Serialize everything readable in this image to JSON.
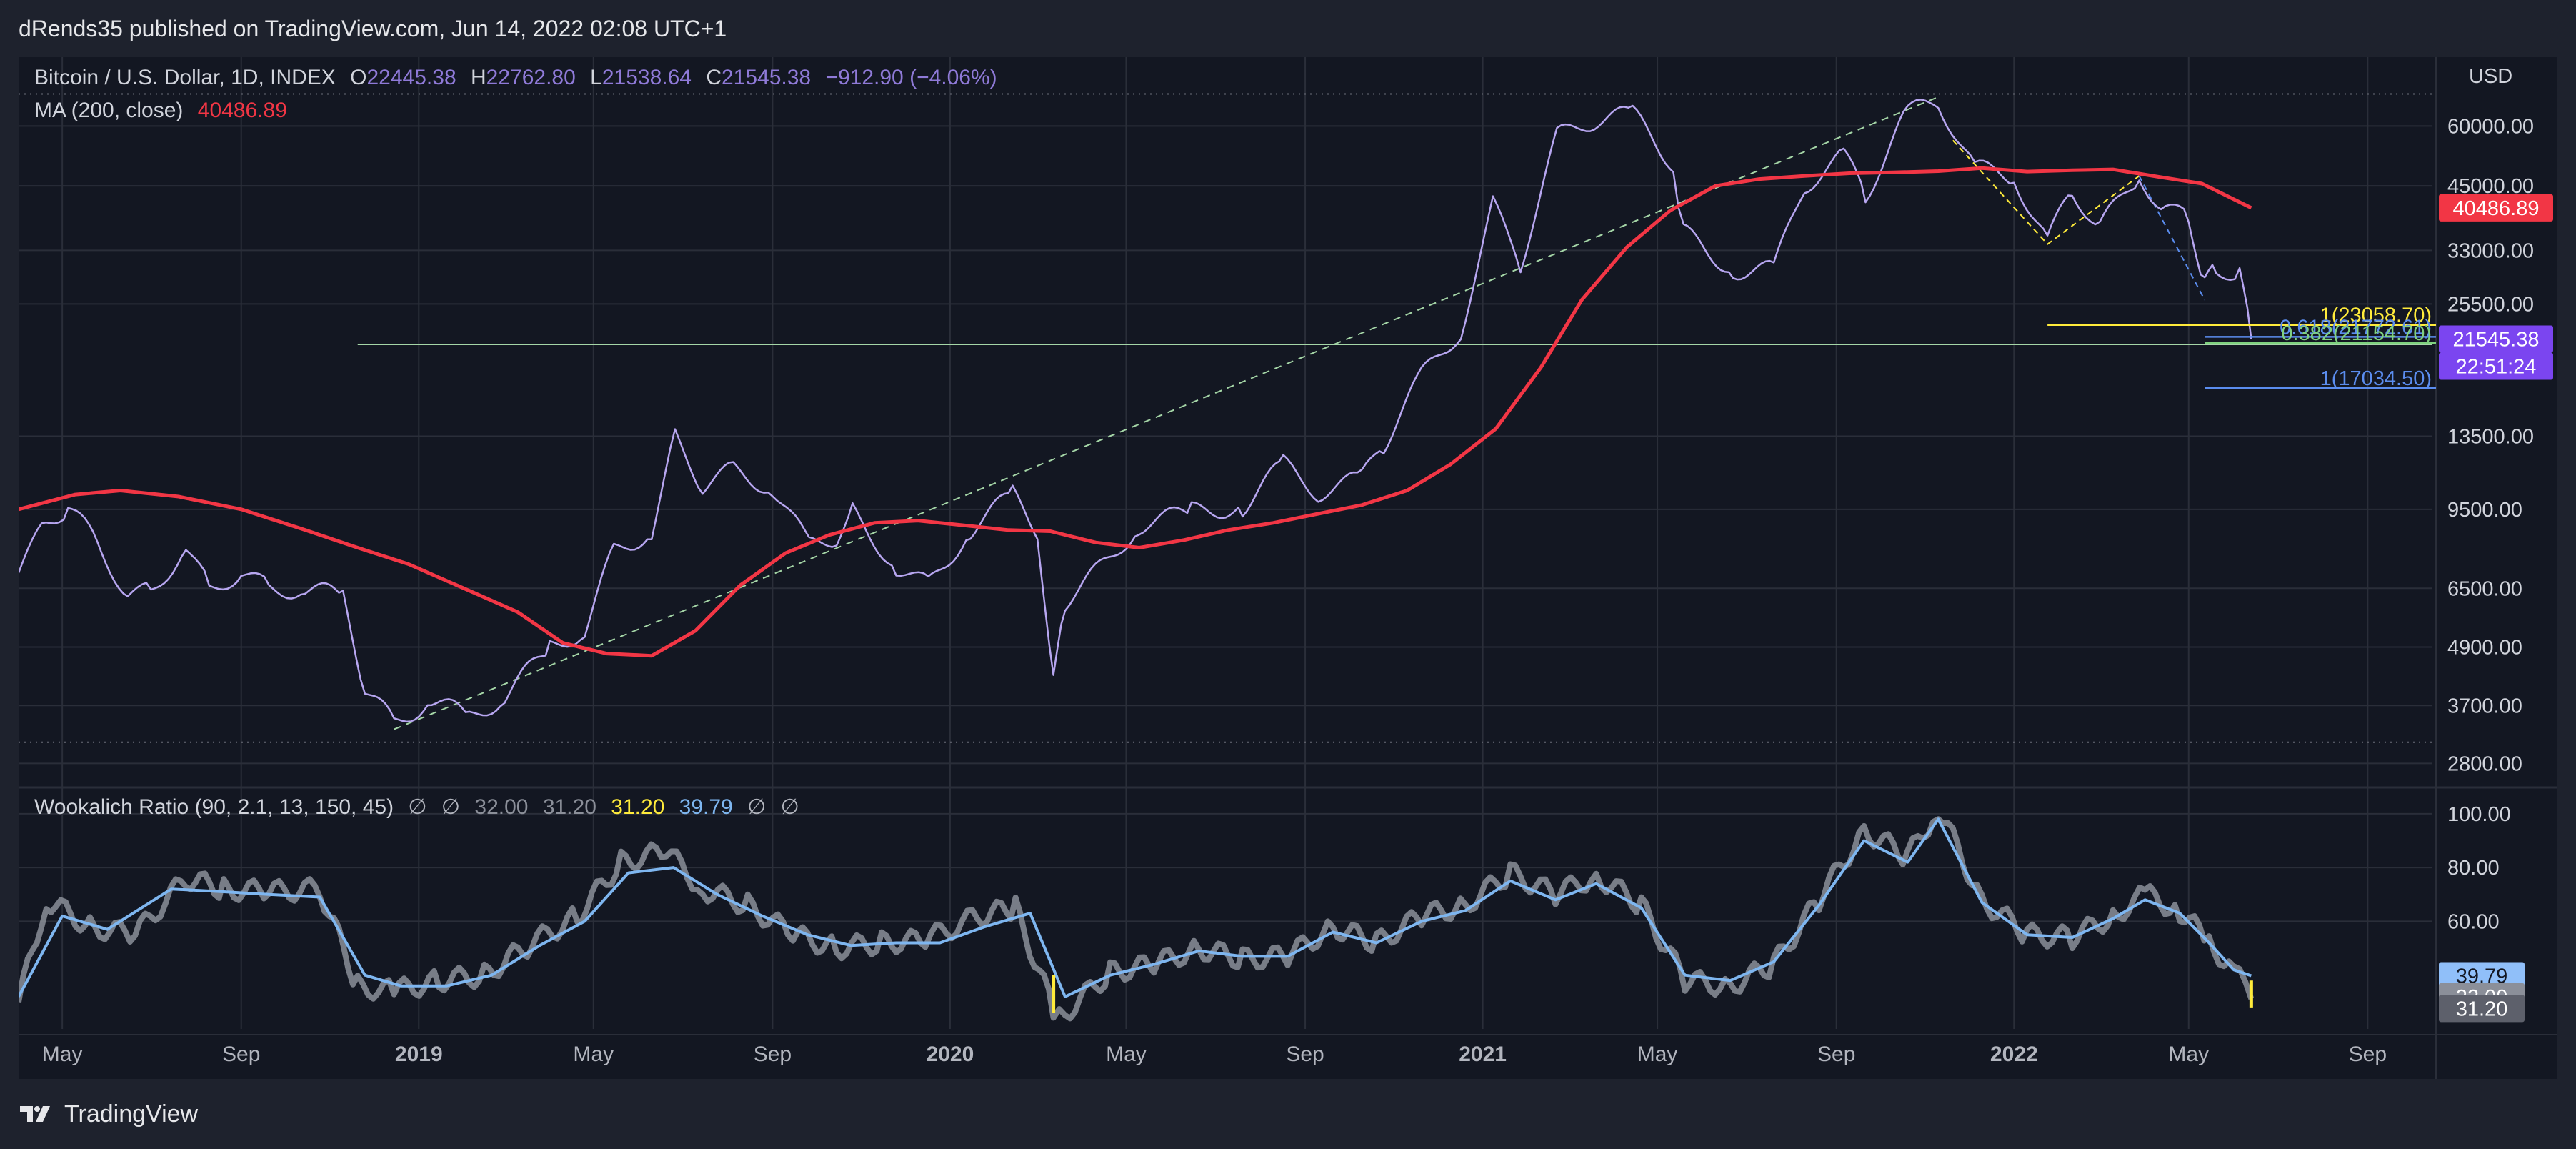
{
  "header": {
    "published": "dRends35 published on TradingView.com, Jun 14, 2022 02:08 UTC+1"
  },
  "footer": {
    "brand": "TradingView"
  },
  "legend_main": {
    "symbol": "Bitcoin / U.S. Dollar, 1D, INDEX",
    "o_label": "O",
    "o_value": "22445.38",
    "h_label": "H",
    "h_value": "22762.80",
    "l_label": "L",
    "l_value": "21538.64",
    "c_label": "C",
    "c_value": "21545.38",
    "change": "−912.90 (−4.06%)",
    "ma_label": "MA (200, close)",
    "ma_value": "40486.89"
  },
  "legend_osc": {
    "label": "Wookalich Ratio (90, 2.1, 13, 150, 45)",
    "v1": "∅",
    "v2": "∅",
    "v3": "32.00",
    "v4": "31.20",
    "v5": "31.20",
    "v6": "39.79",
    "v7": "∅",
    "v8": "∅"
  },
  "colors": {
    "price": "#b7a6f0",
    "ma": "#f23645",
    "osc_raw": "#8b8f99",
    "osc_smooth": "#7eb6f0",
    "fib_yellow": "#ffeb3b",
    "fib_blue": "#5b8def",
    "fib_green": "#7fd17f",
    "last_badge": "#7b45f0"
  },
  "chart_data": [
    {
      "type": "line",
      "title": "Bitcoin / U.S. Dollar, 1D, INDEX",
      "scale": "log",
      "ylabel": "USD",
      "ylim": [
        2600,
        78000
      ],
      "x_ticks": [
        "May",
        "Sep",
        "2019",
        "May",
        "Sep",
        "2020",
        "May",
        "Sep",
        "2021",
        "May",
        "Sep",
        "2022",
        "May",
        "Sep"
      ],
      "y_ticks": [
        "60000.00",
        "45000.00",
        "33000.00",
        "25500.00",
        "13500.00",
        "9500.00",
        "6500.00",
        "4900.00",
        "3700.00",
        "2800.00"
      ],
      "series": [
        {
          "name": "Bitcoin / U.S. Dollar",
          "x": [
            "2018-04-01",
            "2018-04-20",
            "2018-05-05",
            "2018-05-25",
            "2018-06-15",
            "2018-07-01",
            "2018-07-25",
            "2018-08-10",
            "2018-09-01",
            "2018-09-20",
            "2018-10-15",
            "2018-11-10",
            "2018-11-25",
            "2018-12-15",
            "2019-01-10",
            "2019-02-05",
            "2019-03-01",
            "2019-04-01",
            "2019-04-25",
            "2019-05-15",
            "2019-06-10",
            "2019-06-26",
            "2019-07-15",
            "2019-08-05",
            "2019-09-01",
            "2019-09-26",
            "2019-10-15",
            "2019-10-26",
            "2019-11-25",
            "2019-12-17",
            "2020-01-15",
            "2020-02-13",
            "2020-03-01",
            "2020-03-12",
            "2020-03-20",
            "2020-04-10",
            "2020-05-10",
            "2020-06-15",
            "2020-07-20",
            "2020-08-17",
            "2020-09-10",
            "2020-10-10",
            "2020-10-25",
            "2020-11-20",
            "2020-12-17",
            "2021-01-08",
            "2021-01-27",
            "2021-02-21",
            "2021-03-13",
            "2021-04-14",
            "2021-05-12",
            "2021-05-19",
            "2021-06-22",
            "2021-07-20",
            "2021-08-10",
            "2021-09-06",
            "2021-09-21",
            "2021-10-20",
            "2021-11-10",
            "2021-12-05",
            "2022-01-01",
            "2022-01-24",
            "2022-02-10",
            "2022-03-01",
            "2022-03-28",
            "2022-04-15",
            "2022-05-01",
            "2022-05-12",
            "2022-05-20",
            "2022-06-05",
            "2022-06-13"
          ],
          "y": [
            7000,
            8900,
            9600,
            8100,
            6300,
            6400,
            7900,
            6500,
            7000,
            6500,
            6450,
            6300,
            4000,
            3400,
            3800,
            3500,
            3850,
            4900,
            5300,
            7800,
            8500,
            13500,
            10600,
            11500,
            10500,
            8000,
            8300,
            9400,
            7200,
            6600,
            8600,
            10200,
            8600,
            4100,
            6100,
            7000,
            8800,
            9400,
            9600,
            11800,
            10300,
            11000,
            13000,
            18000,
            22500,
            41000,
            31000,
            57000,
            61000,
            63500,
            50000,
            36000,
            30000,
            30000,
            45000,
            52000,
            43000,
            64000,
            67500,
            49000,
            47000,
            34500,
            44000,
            37000,
            47200,
            40000,
            38500,
            28500,
            30000,
            29900,
            21545.38
          ]
        },
        {
          "name": "MA (200, close)",
          "x": [
            "2018-04-01",
            "2018-05-10",
            "2018-06-10",
            "2018-07-20",
            "2018-09-01",
            "2018-10-15",
            "2018-11-20",
            "2018-12-25",
            "2019-02-01",
            "2019-03-10",
            "2019-04-10",
            "2019-05-10",
            "2019-06-10",
            "2019-07-10",
            "2019-08-10",
            "2019-09-10",
            "2019-10-10",
            "2019-11-10",
            "2019-12-10",
            "2020-01-10",
            "2020-02-10",
            "2020-03-10",
            "2020-04-10",
            "2020-05-10",
            "2020-06-10",
            "2020-07-10",
            "2020-08-10",
            "2020-09-10",
            "2020-10-10",
            "2020-11-10",
            "2020-12-10",
            "2021-01-10",
            "2021-02-10",
            "2021-03-10",
            "2021-04-10",
            "2021-05-10",
            "2021-06-10",
            "2021-07-10",
            "2021-08-10",
            "2021-09-10",
            "2021-10-10",
            "2021-11-10",
            "2021-12-10",
            "2022-01-10",
            "2022-02-10",
            "2022-03-10",
            "2022-04-10",
            "2022-05-10",
            "2022-06-13"
          ],
          "y": [
            9500,
            10200,
            10400,
            10100,
            9500,
            8600,
            7900,
            7300,
            6500,
            5800,
            5000,
            4750,
            4700,
            5300,
            6600,
            7700,
            8400,
            8900,
            9000,
            8800,
            8600,
            8550,
            8100,
            7900,
            8200,
            8600,
            8900,
            9300,
            9700,
            10400,
            11800,
            14000,
            18800,
            26000,
            33500,
            40000,
            45000,
            46500,
            47200,
            47800,
            48000,
            48300,
            49000,
            48200,
            48500,
            48700,
            47000,
            45500,
            40486.89
          ]
        }
      ],
      "annotations": [
        {
          "label": "1(23058.70)",
          "value": 23058.7,
          "color": "yellow"
        },
        {
          "label": "0.618(21772.61)",
          "value": 21772.61,
          "color": "blue"
        },
        {
          "label": "0.382(21154.70)",
          "value": 21154.7,
          "color": "green"
        },
        {
          "label": "1(17034.50)",
          "value": 17034.5,
          "color": "blue"
        }
      ],
      "horizontal_line": 21000,
      "price_badges": [
        {
          "label": "40486.89",
          "value": 40486.89,
          "color": "red"
        },
        {
          "label": "21545.38",
          "value": 21545.38,
          "color": "purple"
        },
        {
          "label": "22:51:24",
          "color": "purple"
        }
      ]
    },
    {
      "type": "line",
      "title": "Wookalich Ratio (90, 2.1, 13, 150, 45)",
      "ylim": [
        20,
        105
      ],
      "y_ticks": [
        "100.00",
        "80.00",
        "60.00"
      ],
      "series": [
        {
          "name": "raw",
          "x": [
            "2018-04-01",
            "2018-04-20",
            "2018-05-20",
            "2018-06-20",
            "2018-07-25",
            "2018-08-20",
            "2018-09-20",
            "2018-10-25",
            "2018-11-20",
            "2018-12-15",
            "2019-01-15",
            "2019-02-15",
            "2019-03-20",
            "2019-04-20",
            "2019-05-20",
            "2019-06-20",
            "2019-07-15",
            "2019-08-15",
            "2019-09-15",
            "2019-10-15",
            "2019-11-15",
            "2019-12-15",
            "2020-01-20",
            "2020-02-15",
            "2020-03-12",
            "2020-03-20",
            "2020-04-20",
            "2020-05-20",
            "2020-06-20",
            "2020-07-20",
            "2020-08-20",
            "2020-09-20",
            "2020-10-20",
            "2020-11-20",
            "2020-12-20",
            "2021-01-20",
            "2021-02-20",
            "2021-03-20",
            "2021-04-20",
            "2021-05-20",
            "2021-06-20",
            "2021-07-20",
            "2021-08-20",
            "2021-09-20",
            "2021-10-20",
            "2021-11-10",
            "2021-12-10",
            "2022-01-10",
            "2022-02-10",
            "2022-03-10",
            "2022-04-01",
            "2022-04-25",
            "2022-05-15",
            "2022-06-01",
            "2022-06-13"
          ],
          "y": [
            30,
            68,
            58,
            55,
            76,
            72,
            71,
            72,
            36,
            34,
            38,
            40,
            52,
            62,
            82,
            86,
            72,
            66,
            55,
            50,
            52,
            53,
            62,
            65,
            27,
            26,
            41,
            44,
            50,
            46,
            47,
            58,
            52,
            62,
            66,
            78,
            70,
            77,
            66,
            38,
            36,
            44,
            68,
            94,
            84,
            102,
            68,
            55,
            54,
            62,
            70,
            64,
            52,
            42,
            31.2
          ]
        },
        {
          "name": "smoothed",
          "x": [
            "2018-04-01",
            "2018-05-01",
            "2018-06-01",
            "2018-07-15",
            "2018-08-20",
            "2018-09-20",
            "2018-10-25",
            "2018-11-25",
            "2018-12-20",
            "2019-01-20",
            "2019-02-20",
            "2019-03-25",
            "2019-04-25",
            "2019-05-25",
            "2019-06-25",
            "2019-07-25",
            "2019-08-25",
            "2019-09-25",
            "2019-10-25",
            "2019-11-25",
            "2019-12-25",
            "2020-01-25",
            "2020-02-25",
            "2020-03-20",
            "2020-04-20",
            "2020-05-20",
            "2020-06-20",
            "2020-07-20",
            "2020-08-20",
            "2020-09-20",
            "2020-10-20",
            "2020-11-20",
            "2020-12-20",
            "2021-01-20",
            "2021-02-20",
            "2021-03-20",
            "2021-04-20",
            "2021-05-20",
            "2021-06-20",
            "2021-07-20",
            "2021-08-20",
            "2021-09-20",
            "2021-10-20",
            "2021-11-10",
            "2021-12-10",
            "2022-01-10",
            "2022-02-10",
            "2022-03-10",
            "2022-04-01",
            "2022-04-25",
            "2022-05-15",
            "2022-06-01",
            "2022-06-13"
          ],
          "y": [
            32,
            62,
            57,
            72,
            71,
            70,
            69,
            40,
            36,
            36,
            40,
            51,
            60,
            78,
            80,
            70,
            62,
            55,
            51,
            52,
            52,
            58,
            63,
            32,
            40,
            44,
            49,
            47,
            47,
            56,
            52,
            60,
            64,
            75,
            68,
            74,
            65,
            40,
            38,
            45,
            66,
            90,
            82,
            98,
            67,
            55,
            54,
            61,
            68,
            63,
            52,
            42,
            39.79
          ]
        }
      ],
      "current_values": [
        "39.79",
        "32.00",
        "31.20"
      ]
    }
  ]
}
